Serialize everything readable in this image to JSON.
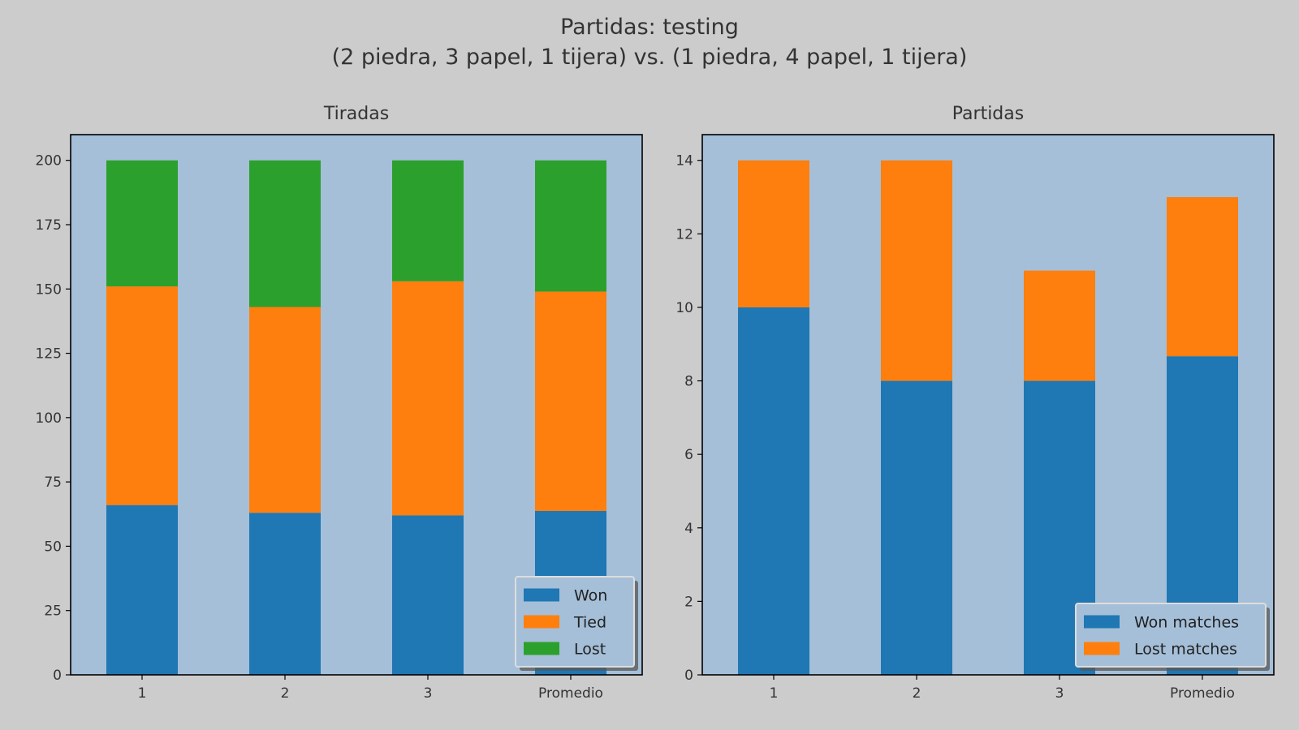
{
  "figure": {
    "title_line1": "Partidas: testing",
    "title_line2": "(2 piedra, 3 papel, 1 tijera) vs. (1 piedra, 4 papel, 1 tijera)",
    "background": "#cccccc",
    "axes_background": "#a5bfd8"
  },
  "chart_data": [
    {
      "type": "bar",
      "stacked": true,
      "title": "Tiradas",
      "xlabel": "",
      "ylabel": "",
      "categories": [
        "1",
        "2",
        "3",
        "Promedio"
      ],
      "ylim": [
        0,
        210
      ],
      "yticks": [
        0,
        25,
        50,
        75,
        100,
        125,
        150,
        175,
        200
      ],
      "series": [
        {
          "name": "Won",
          "color": "#1f77b4",
          "values": [
            66,
            63,
            62,
            63.7
          ]
        },
        {
          "name": "Tied",
          "color": "#ff7f0e",
          "values": [
            85,
            80,
            91,
            85.3
          ]
        },
        {
          "name": "Lost",
          "color": "#2ca02c",
          "values": [
            49,
            57,
            47,
            51
          ]
        }
      ],
      "legend": "lower-right",
      "grid": false
    },
    {
      "type": "bar",
      "stacked": true,
      "title": "Partidas",
      "xlabel": "",
      "ylabel": "",
      "categories": [
        "1",
        "2",
        "3",
        "Promedio"
      ],
      "ylim": [
        0,
        14.7
      ],
      "yticks": [
        0,
        2,
        4,
        6,
        8,
        10,
        12,
        14
      ],
      "series": [
        {
          "name": "Won matches",
          "color": "#1f77b4",
          "values": [
            10,
            8,
            8,
            8.67
          ]
        },
        {
          "name": "Lost matches",
          "color": "#ff7f0e",
          "values": [
            4,
            6,
            3,
            4.33
          ]
        }
      ],
      "legend": "lower-right",
      "grid": false
    }
  ]
}
